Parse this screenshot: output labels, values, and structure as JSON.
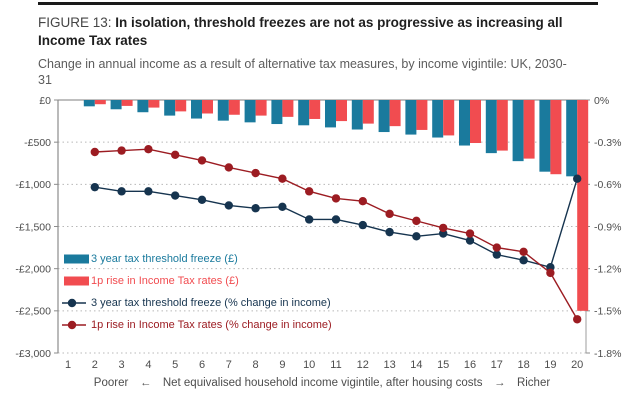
{
  "figure": {
    "label": "FIGURE 13:",
    "title": "In isolation, threshold freezes are not as progressive as increasing all Income Tax rates",
    "subtitle": "Change in annual income as a result of alternative tax measures, by income vigintile: UK, 2030-31"
  },
  "chart_data": {
    "type": "bar+line",
    "x": [
      1,
      2,
      3,
      4,
      5,
      6,
      7,
      8,
      9,
      10,
      11,
      12,
      13,
      14,
      15,
      16,
      17,
      18,
      19,
      20
    ],
    "series": [
      {
        "name": "3 year tax threshold freeze (£)",
        "kind": "bar",
        "axis": "left",
        "color": "#1a7a9d",
        "values": [
          0,
          -75,
          -110,
          -145,
          -185,
          -220,
          -245,
          -265,
          -285,
          -300,
          -325,
          -350,
          -380,
          -410,
          -445,
          -540,
          -630,
          -725,
          -850,
          -905
        ]
      },
      {
        "name": "1p rise in Income Tax rates (£)",
        "kind": "bar",
        "axis": "left",
        "color": "#f14c50",
        "values": [
          0,
          -50,
          -70,
          -90,
          -135,
          -160,
          -175,
          -185,
          -200,
          -225,
          -250,
          -280,
          -310,
          -355,
          -420,
          -510,
          -600,
          -695,
          -880,
          -2500
        ]
      },
      {
        "name": "3 year tax threshold freeze (% change in income)",
        "kind": "line",
        "axis": "right",
        "color": "#16344f",
        "values": [
          null,
          -0.62,
          -0.65,
          -0.65,
          -0.68,
          -0.71,
          -0.75,
          -0.77,
          -0.76,
          -0.85,
          -0.85,
          -0.89,
          -0.94,
          -0.97,
          -0.95,
          -1.0,
          -1.1,
          -1.14,
          -1.19,
          -0.56
        ]
      },
      {
        "name": "1p rise in Income Tax rates (% change in income)",
        "kind": "line",
        "axis": "right",
        "color": "#9c1c22",
        "values": [
          null,
          -0.37,
          -0.36,
          -0.35,
          -0.39,
          -0.43,
          -0.48,
          -0.52,
          -0.56,
          -0.65,
          -0.7,
          -0.72,
          -0.81,
          -0.86,
          -0.91,
          -0.95,
          -1.05,
          -1.08,
          -1.23,
          -1.56
        ]
      }
    ],
    "left_axis": {
      "ticks": [
        "£0",
        "-£500",
        "-£1,000",
        "-£1,500",
        "-£2,000",
        "-£2,500",
        "-£3,000"
      ],
      "range": [
        0,
        -3000
      ]
    },
    "right_axis": {
      "ticks": [
        "0%",
        "-0.3%",
        "-0.6%",
        "-0.9%",
        "-1.2%",
        "-1.5%",
        "-1.8%"
      ],
      "range": [
        0,
        -1.8
      ]
    },
    "x_axis": {
      "ticks": [
        "1",
        "2",
        "3",
        "4",
        "5",
        "6",
        "7",
        "8",
        "9",
        "10",
        "11",
        "12",
        "13",
        "14",
        "15",
        "16",
        "17",
        "18",
        "19",
        "20"
      ],
      "footer": {
        "poorer": "Poorer",
        "arrow_left": "←",
        "label": "Net equivalised household income vigintile, after housing costs",
        "arrow_right": "→",
        "richer": "Richer"
      }
    },
    "legend": [
      {
        "label": "3 year tax threshold freeze (£)",
        "swatch": "bar",
        "color": "#1a7a9d"
      },
      {
        "label": "1p rise in Income Tax rates (£)",
        "swatch": "bar",
        "color": "#f14c50"
      },
      {
        "label": "3 year tax threshold freeze (% change in income)",
        "swatch": "line",
        "color": "#16344f"
      },
      {
        "label": "1p rise in Income Tax rates (% change in income)",
        "swatch": "line",
        "color": "#9c1c22"
      }
    ],
    "grid": {
      "style": "dotted-horizontal",
      "color": "#b8b8b8",
      "top_line_color": "#999999"
    },
    "legend_position": "inside-bottom-left"
  }
}
